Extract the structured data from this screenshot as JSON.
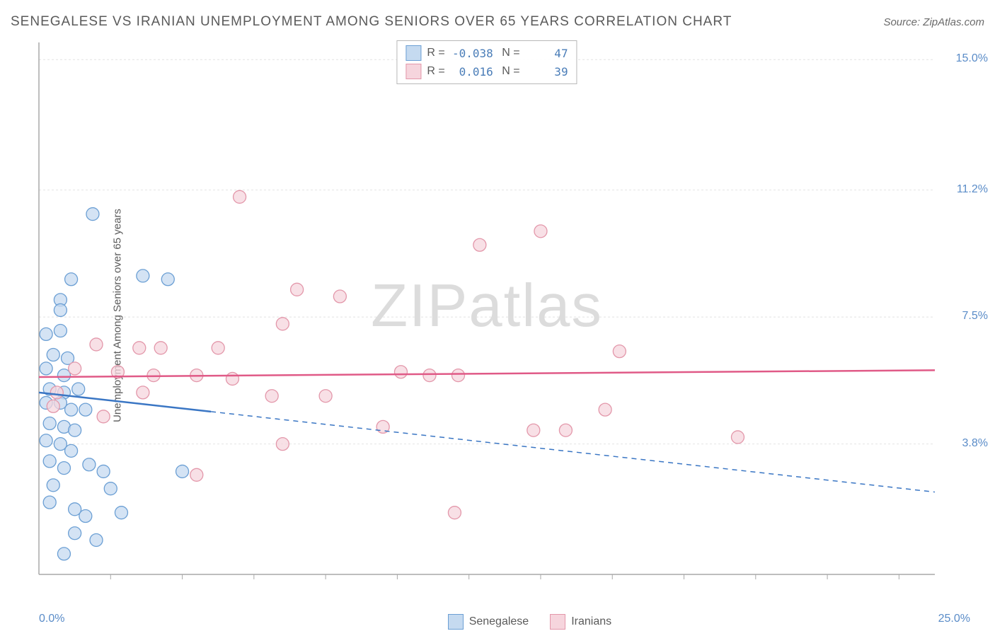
{
  "header": {
    "title": "SENEGALESE VS IRANIAN UNEMPLOYMENT AMONG SENIORS OVER 65 YEARS CORRELATION CHART",
    "source": "Source: ZipAtlas.com"
  },
  "ylabel": "Unemployment Among Seniors over 65 years",
  "watermark_zip": "ZIP",
  "watermark_atlas": "atlas",
  "chart": {
    "type": "scatter",
    "xlim": [
      0,
      25
    ],
    "ylim": [
      0,
      15.5
    ],
    "background_color": "#ffffff",
    "grid_color": "#e2e2e2",
    "axis_color": "#a8a8a8",
    "x_axis_labels": [
      {
        "value": 0,
        "label": "0.0%"
      },
      {
        "value": 25,
        "label": "25.0%"
      }
    ],
    "x_ticks": [
      2,
      4,
      6,
      8,
      10,
      12,
      14,
      16,
      18,
      20,
      22,
      24
    ],
    "y_axis_labels": [
      {
        "value": 15.0,
        "label": "15.0%"
      },
      {
        "value": 11.2,
        "label": "11.2%"
      },
      {
        "value": 7.5,
        "label": "7.5%"
      },
      {
        "value": 3.8,
        "label": "3.8%"
      }
    ],
    "y_gridlines": [
      15.0,
      11.2,
      7.5,
      3.8
    ],
    "series": [
      {
        "name": "Senegalese",
        "color_fill": "#c5daf0",
        "color_stroke": "#6b9fd4",
        "marker_radius": 9,
        "line_color": "#3a76c4",
        "R": "-0.038",
        "N": "47",
        "reg_line": {
          "x1": 0,
          "y1": 5.3,
          "x2": 25,
          "y2": 2.4
        },
        "solid_extent_x": 4.8,
        "points": [
          {
            "x": 1.5,
            "y": 10.5
          },
          {
            "x": 0.9,
            "y": 8.6
          },
          {
            "x": 2.9,
            "y": 8.7
          },
          {
            "x": 3.6,
            "y": 8.6
          },
          {
            "x": 0.6,
            "y": 8.0
          },
          {
            "x": 0.6,
            "y": 7.7
          },
          {
            "x": 0.2,
            "y": 7.0
          },
          {
            "x": 0.6,
            "y": 7.1
          },
          {
            "x": 0.4,
            "y": 6.4
          },
          {
            "x": 0.8,
            "y": 6.3
          },
          {
            "x": 0.2,
            "y": 6.0
          },
          {
            "x": 0.7,
            "y": 5.8
          },
          {
            "x": 0.3,
            "y": 5.4
          },
          {
            "x": 0.7,
            "y": 5.3
          },
          {
            "x": 1.1,
            "y": 5.4
          },
          {
            "x": 0.2,
            "y": 5.0
          },
          {
            "x": 0.6,
            "y": 5.0
          },
          {
            "x": 0.9,
            "y": 4.8
          },
          {
            "x": 1.3,
            "y": 4.8
          },
          {
            "x": 0.3,
            "y": 4.4
          },
          {
            "x": 0.7,
            "y": 4.3
          },
          {
            "x": 1.0,
            "y": 4.2
          },
          {
            "x": 0.2,
            "y": 3.9
          },
          {
            "x": 0.6,
            "y": 3.8
          },
          {
            "x": 0.9,
            "y": 3.6
          },
          {
            "x": 0.3,
            "y": 3.3
          },
          {
            "x": 0.7,
            "y": 3.1
          },
          {
            "x": 1.4,
            "y": 3.2
          },
          {
            "x": 1.8,
            "y": 3.0
          },
          {
            "x": 4.0,
            "y": 3.0
          },
          {
            "x": 0.4,
            "y": 2.6
          },
          {
            "x": 2.0,
            "y": 2.5
          },
          {
            "x": 0.3,
            "y": 2.1
          },
          {
            "x": 1.0,
            "y": 1.9
          },
          {
            "x": 1.3,
            "y": 1.7
          },
          {
            "x": 2.3,
            "y": 1.8
          },
          {
            "x": 1.0,
            "y": 1.2
          },
          {
            "x": 1.6,
            "y": 1.0
          },
          {
            "x": 0.7,
            "y": 0.6
          }
        ]
      },
      {
        "name": "Iranians",
        "color_fill": "#f6d5dd",
        "color_stroke": "#e397aa",
        "marker_radius": 9,
        "line_color": "#e05a87",
        "R": "0.016",
        "N": "39",
        "reg_line": {
          "x1": 0,
          "y1": 5.75,
          "x2": 25,
          "y2": 5.95
        },
        "solid_extent_x": 25,
        "points": [
          {
            "x": 5.6,
            "y": 11.0
          },
          {
            "x": 14.0,
            "y": 10.0
          },
          {
            "x": 12.3,
            "y": 9.6
          },
          {
            "x": 7.2,
            "y": 8.3
          },
          {
            "x": 8.4,
            "y": 8.1
          },
          {
            "x": 6.8,
            "y": 7.3
          },
          {
            "x": 1.6,
            "y": 6.7
          },
          {
            "x": 2.8,
            "y": 6.6
          },
          {
            "x": 3.4,
            "y": 6.6
          },
          {
            "x": 5.0,
            "y": 6.6
          },
          {
            "x": 16.2,
            "y": 6.5
          },
          {
            "x": 1.0,
            "y": 6.0
          },
          {
            "x": 2.2,
            "y": 5.9
          },
          {
            "x": 3.2,
            "y": 5.8
          },
          {
            "x": 4.4,
            "y": 5.8
          },
          {
            "x": 5.4,
            "y": 5.7
          },
          {
            "x": 10.1,
            "y": 5.9
          },
          {
            "x": 10.9,
            "y": 5.8
          },
          {
            "x": 11.7,
            "y": 5.8
          },
          {
            "x": 0.5,
            "y": 5.3
          },
          {
            "x": 2.9,
            "y": 5.3
          },
          {
            "x": 6.5,
            "y": 5.2
          },
          {
            "x": 8.0,
            "y": 5.2
          },
          {
            "x": 15.8,
            "y": 4.8
          },
          {
            "x": 0.4,
            "y": 4.9
          },
          {
            "x": 1.8,
            "y": 4.6
          },
          {
            "x": 9.6,
            "y": 4.3
          },
          {
            "x": 13.8,
            "y": 4.2
          },
          {
            "x": 14.7,
            "y": 4.2
          },
          {
            "x": 19.5,
            "y": 4.0
          },
          {
            "x": 6.8,
            "y": 3.8
          },
          {
            "x": 4.4,
            "y": 2.9
          },
          {
            "x": 11.6,
            "y": 1.8
          }
        ]
      }
    ]
  },
  "bottom_legend": [
    {
      "label": "Senegalese",
      "fill": "#c5daf0",
      "stroke": "#6b9fd4"
    },
    {
      "label": "Iranians",
      "fill": "#f6d5dd",
      "stroke": "#e397aa"
    }
  ]
}
